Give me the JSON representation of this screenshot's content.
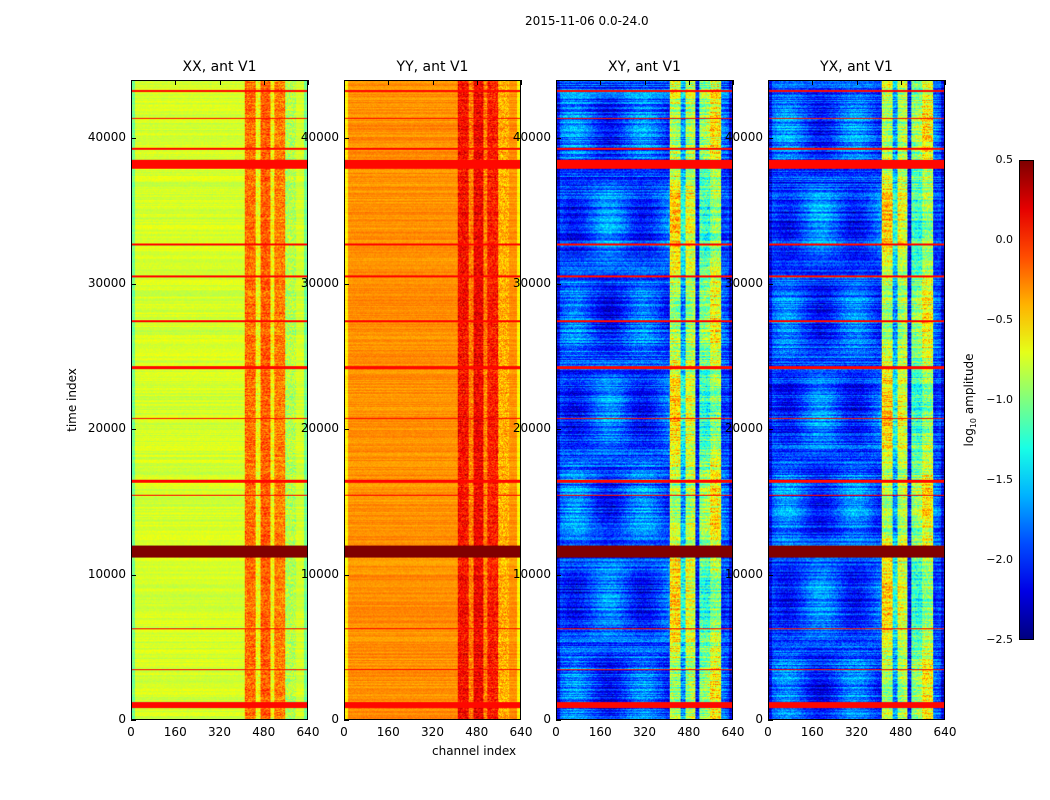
{
  "chart_data": {
    "type": "heatmap",
    "suptitle": "2015-11-06 0.0-24.0",
    "xlabel": "channel index",
    "ylabel": "time index",
    "xlim": [
      0,
      640
    ],
    "ylim": [
      0,
      44000
    ],
    "xticks": [
      "0",
      "160",
      "320",
      "480",
      "640"
    ],
    "yticks": [
      "0",
      "10000",
      "20000",
      "30000",
      "40000"
    ],
    "colorbar": {
      "label": "log10 amplitude",
      "label_main": "log",
      "label_sub": "10",
      "label_rest": " amplitude",
      "range": [
        -2.5,
        0.5
      ],
      "ticks": [
        "0.5",
        "0.0",
        "−0.5",
        "−1.0",
        "−1.5",
        "−2.0",
        "−2.5"
      ],
      "colormap": "jet"
    },
    "panels": [
      {
        "title": "XX, ant V1",
        "base": -0.75,
        "band_boost": [
          0.55,
          0.1,
          0.6,
          0.1,
          0.5,
          -0.1
        ]
      },
      {
        "title": "YY, ant V1",
        "base": -0.3,
        "band_boost": [
          0.4,
          0.05,
          0.45,
          0.05,
          0.35,
          -0.1
        ]
      },
      {
        "title": "XY, ant V1",
        "base": -1.9,
        "band_boost": [
          1.2,
          0.4,
          1.1,
          -0.2,
          0.8,
          1.1
        ]
      },
      {
        "title": "YX, ant V1",
        "base": -1.9,
        "band_boost": [
          1.2,
          0.4,
          1.1,
          -0.2,
          0.8,
          1.1
        ]
      }
    ],
    "band_channels": [
      [
        410,
        450
      ],
      [
        450,
        470
      ],
      [
        470,
        505
      ],
      [
        505,
        520
      ],
      [
        520,
        560
      ],
      [
        560,
        600
      ]
    ],
    "flagged_rows": [
      {
        "from": 38000,
        "to": 38600,
        "value": 0.1
      },
      {
        "from": 11200,
        "to": 12000,
        "value": 0.5
      },
      {
        "from": 800,
        "to": 1200,
        "value": 0.1
      },
      {
        "from": 43300,
        "to": 43400,
        "value": 0.1
      },
      {
        "from": 41400,
        "to": 41500,
        "value": 0.1
      },
      {
        "from": 39300,
        "to": 39400,
        "value": 0.1
      },
      {
        "from": 32700,
        "to": 32800,
        "value": 0.1
      },
      {
        "from": 30500,
        "to": 30600,
        "value": 0.1
      },
      {
        "from": 27400,
        "to": 27500,
        "value": 0.1
      },
      {
        "from": 24200,
        "to": 24400,
        "value": 0.1
      },
      {
        "from": 20700,
        "to": 20800,
        "value": 0.1
      },
      {
        "from": 16300,
        "to": 16500,
        "value": 0.1
      },
      {
        "from": 15400,
        "to": 15500,
        "value": 0.1
      },
      {
        "from": 6200,
        "to": 6300,
        "value": 0.1
      },
      {
        "from": 3400,
        "to": 3500,
        "value": 0.1
      }
    ]
  }
}
